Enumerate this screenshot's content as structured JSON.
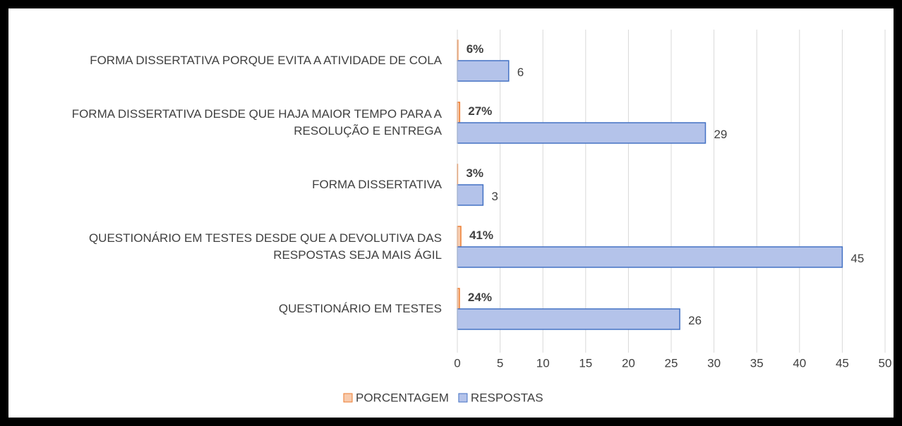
{
  "chart_data": {
    "type": "hbar",
    "categories": [
      "FORMA DISSERTATIVA PORQUE EVITA A ATIVIDADE DE COLA",
      "FORMA DISSERTATIVA DESDE QUE HAJA MAIOR TEMPO PARA A RESOLUÇÃO E ENTREGA",
      "FORMA DISSERTATIVA",
      "QUESTIONÁRIO EM TESTES DESDE QUE A DEVOLUTIVA DAS RESPOSTAS SEJA MAIS ÁGIL",
      "QUESTIONÁRIO EM TESTES"
    ],
    "series": [
      {
        "name": "PORCENTAGEM",
        "color": "#ed7d31",
        "values": [
          0.06,
          0.27,
          0.03,
          0.41,
          0.24
        ],
        "value_labels": [
          "6%",
          "27%",
          "3%",
          "41%",
          "24%"
        ]
      },
      {
        "name": "RESPOSTAS",
        "color": "#4472c4",
        "values": [
          6,
          29,
          3,
          45,
          26
        ]
      }
    ],
    "xlim": [
      0,
      50
    ],
    "xticks": [
      0,
      5,
      10,
      15,
      20,
      25,
      30,
      35,
      40,
      45,
      50
    ],
    "grid": true,
    "legend": "bottom"
  }
}
